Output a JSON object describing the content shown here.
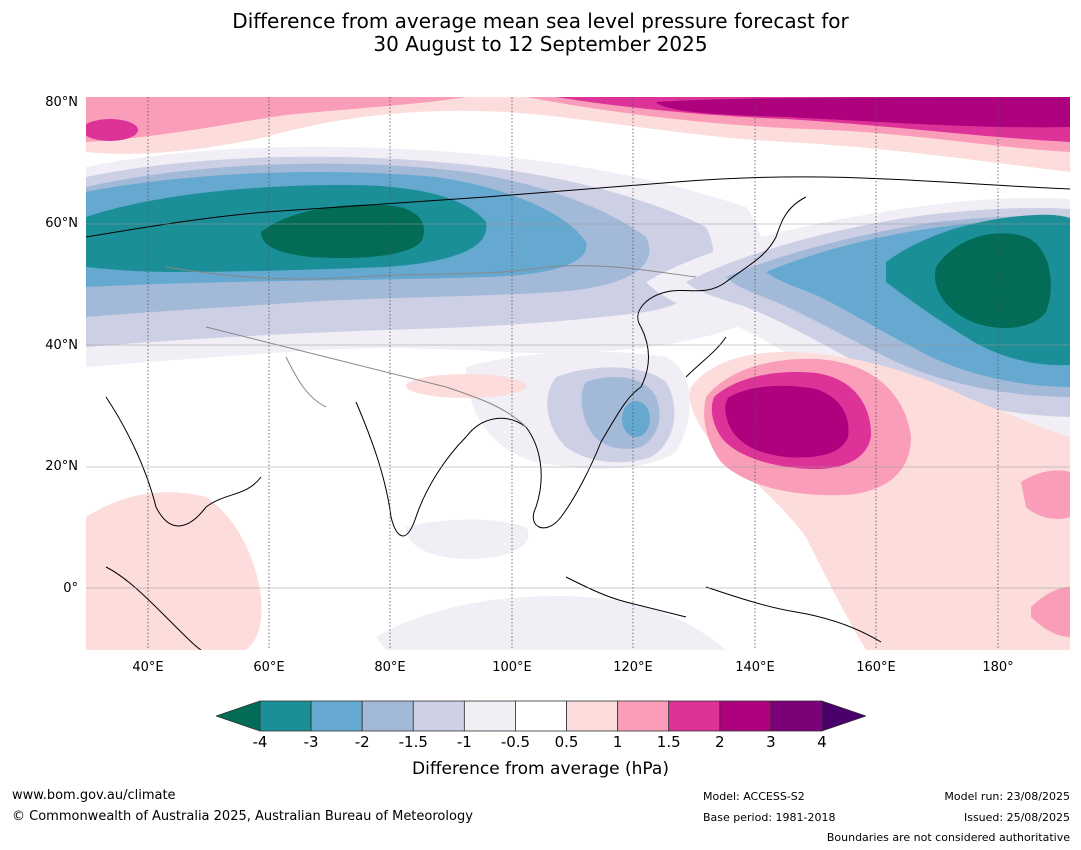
{
  "title": {
    "line1": "Difference from average mean sea level pressure forecast for",
    "line2": "30 August to 12 September 2025"
  },
  "map": {
    "lat_labels": [
      "80°N",
      "60°N",
      "40°N",
      "20°N",
      "0°"
    ],
    "lon_labels": [
      "40°E",
      "60°E",
      "80°E",
      "100°E",
      "120°E",
      "140°E",
      "160°E",
      "180°"
    ]
  },
  "colorbar": {
    "ticks": [
      "-4",
      "-3",
      "-2",
      "-1.5",
      "-1",
      "-0.5",
      "0.5",
      "1",
      "1.5",
      "2",
      "3",
      "4"
    ],
    "colors": [
      "#1a8f97",
      "#65a8d0",
      "#a3b9d8",
      "#cdcfe5",
      "#f1eef5",
      "#ffffff",
      "#fddcdc",
      "#f99db9",
      "#dd3399",
      "#ad017e",
      "#7a0177"
    ],
    "low_extend_color": "#026c57",
    "high_extend_color": "#49006a",
    "label": "Difference from average (hPa)"
  },
  "footer": {
    "website": "www.bom.gov.au/climate",
    "copyright": "© Commonwealth of Australia 2025, Australian Bureau of Meteorology",
    "model": "Model: ACCESS-S2",
    "base_period": "Base period: 1981-2018",
    "model_run": "Model run: 23/08/2025",
    "issued": "Issued: 25/08/2025",
    "disclaimer": "Boundaries are not considered authoritative"
  }
}
